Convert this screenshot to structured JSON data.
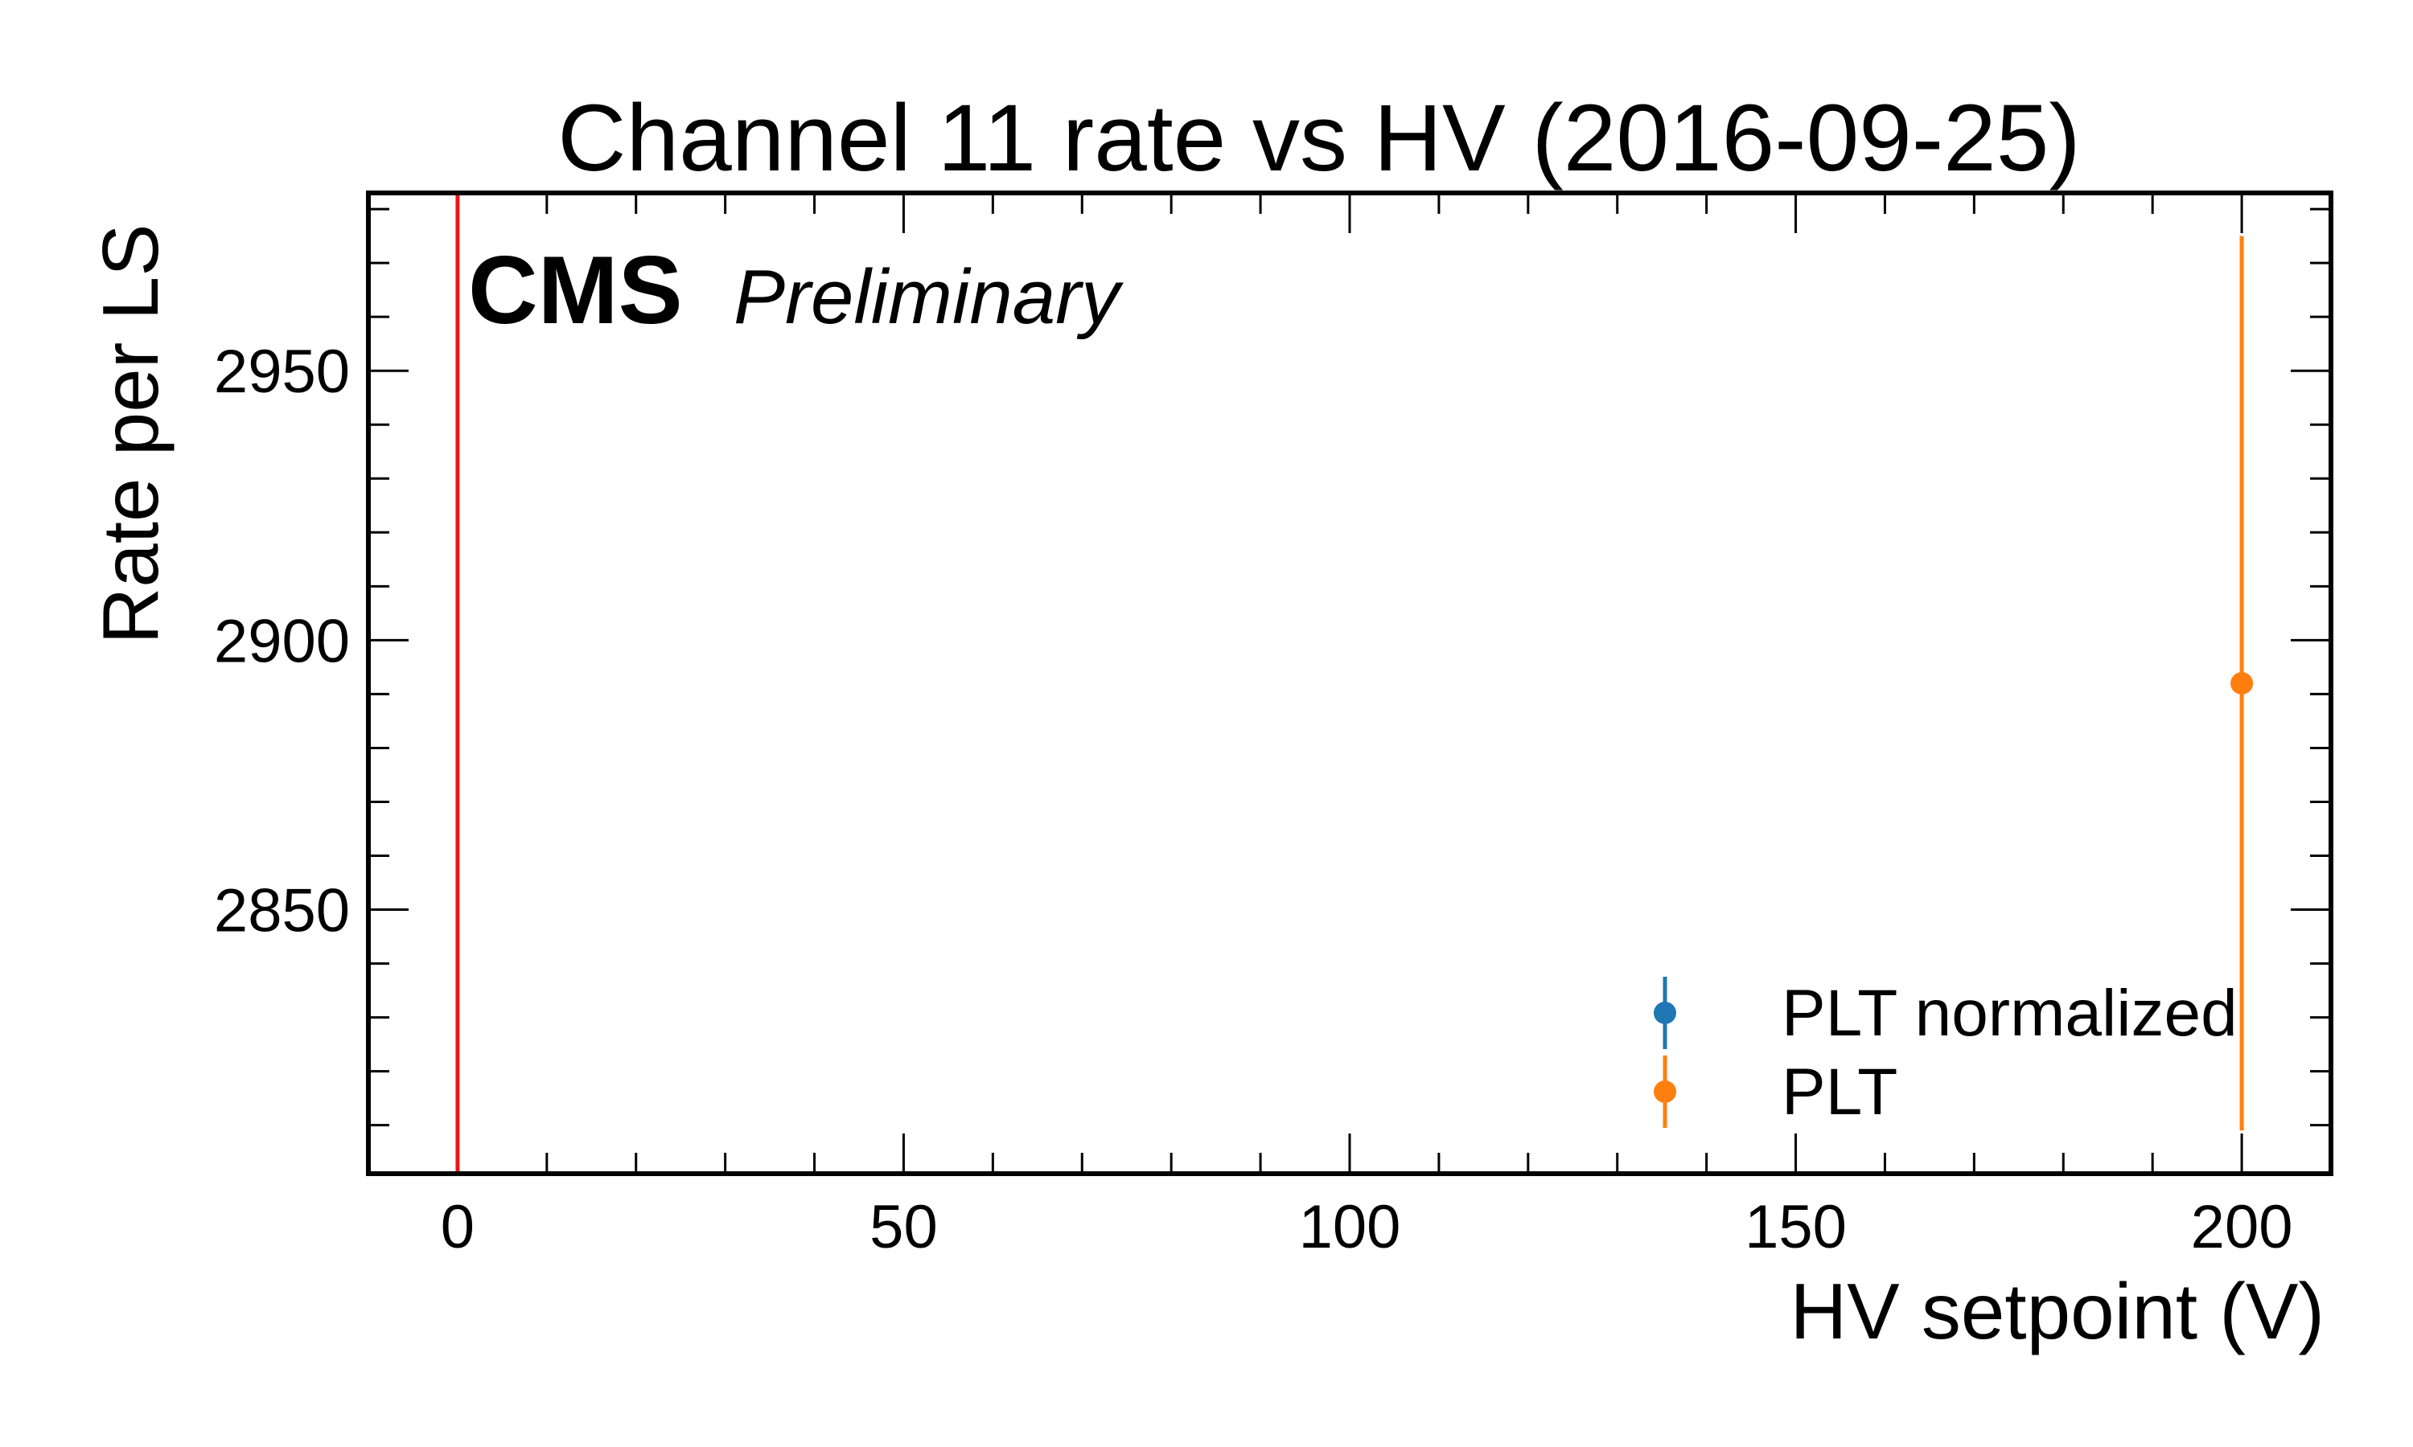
{
  "chart_data": {
    "type": "scatter",
    "title": "Channel 11 rate vs HV (2016-09-25)",
    "xlabel": "HV setpoint (V)",
    "ylabel": "Rate per LS",
    "xlim": [
      -10,
      210
    ],
    "ylim": [
      2801,
      2983
    ],
    "x_ticks": [
      0,
      50,
      100,
      150,
      200
    ],
    "y_ticks": [
      2850,
      2900,
      2950
    ],
    "x_minor_step": 10,
    "y_minor_step": 10,
    "experiment_label": "CMS",
    "status_label": "Preliminary",
    "vertical_line": {
      "x": 0,
      "color": "#e8171b"
    },
    "legend_placement": "lower-right",
    "series": [
      {
        "name": "PLT normalized",
        "color": "#1f77b4",
        "points": []
      },
      {
        "name": "PLT",
        "color": "#ff7f0e",
        "points": [
          {
            "x": 200,
            "y": 2892,
            "yerr": 83
          }
        ]
      }
    ]
  }
}
